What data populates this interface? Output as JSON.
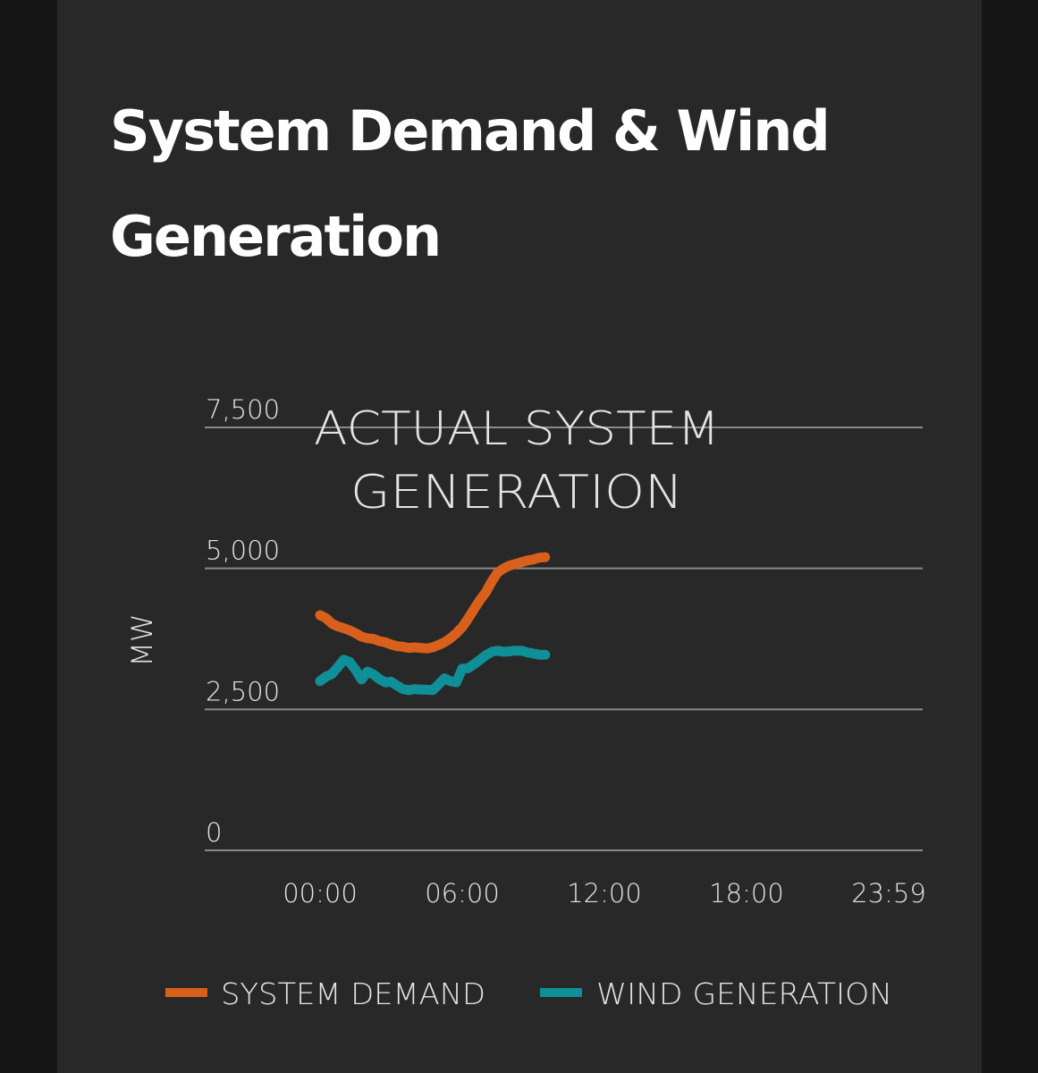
{
  "page": {
    "heading": "System Demand & Wind Generation"
  },
  "colors": {
    "page_background": "#161616",
    "panel_background": "#282828",
    "system_demand": "#d9601c",
    "wind_generation": "#0f8f98",
    "gridline": "#8a8a8a",
    "text": "#e4e4e4"
  },
  "chart_data": {
    "type": "line",
    "title": "ACTUAL SYSTEM GENERATION",
    "title_lines": [
      "ACTUAL SYSTEM",
      "GENERATION"
    ],
    "xlabel": "",
    "ylabel": "MW",
    "ylim": [
      0,
      7500
    ],
    "y_ticks": [
      0,
      2500,
      5000,
      7500
    ],
    "y_tick_labels": [
      "0",
      "2,500",
      "5,000",
      "7,500"
    ],
    "x_range_hours": [
      0,
      24
    ],
    "x_ticks_hours": [
      0,
      6,
      12,
      18,
      24
    ],
    "x_tick_labels": [
      "00:00",
      "06:00",
      "12:00",
      "18:00",
      "23:59"
    ],
    "grid": true,
    "legend_position": "bottom",
    "series": [
      {
        "name": "SYSTEM DEMAND",
        "color": "#d9601c",
        "x": [
          0,
          0.25,
          0.5,
          0.75,
          1,
          1.25,
          1.5,
          1.75,
          2,
          2.25,
          2.5,
          2.75,
          3,
          3.25,
          3.5,
          3.75,
          4,
          4.25,
          4.5,
          4.75,
          5,
          5.25,
          5.5,
          5.75,
          6,
          6.25,
          6.5,
          6.75,
          7,
          7.25,
          7.5,
          7.75,
          8,
          8.25,
          8.5,
          8.75,
          9,
          9.25,
          9.5
        ],
        "values": [
          4170,
          4120,
          4020,
          3970,
          3940,
          3900,
          3850,
          3790,
          3760,
          3750,
          3710,
          3690,
          3650,
          3620,
          3610,
          3590,
          3600,
          3590,
          3580,
          3600,
          3640,
          3690,
          3760,
          3850,
          3960,
          4110,
          4280,
          4440,
          4580,
          4770,
          4930,
          5000,
          5050,
          5080,
          5110,
          5140,
          5160,
          5190,
          5200
        ]
      },
      {
        "name": "WIND GENERATION",
        "color": "#0f8f98",
        "x": [
          0,
          0.25,
          0.5,
          0.75,
          1,
          1.25,
          1.5,
          1.75,
          2,
          2.25,
          2.5,
          2.75,
          3,
          3.25,
          3.5,
          3.75,
          4,
          4.25,
          4.5,
          4.75,
          5,
          5.25,
          5.5,
          5.75,
          6,
          6.25,
          6.5,
          6.75,
          7,
          7.25,
          7.5,
          7.75,
          8,
          8.25,
          8.5,
          8.75,
          9,
          9.25,
          9.5
        ],
        "values": [
          3000,
          3080,
          3130,
          3250,
          3380,
          3340,
          3200,
          3030,
          3170,
          3120,
          3040,
          2980,
          2990,
          2920,
          2860,
          2840,
          2860,
          2850,
          2850,
          2840,
          2940,
          3050,
          3000,
          2980,
          3220,
          3230,
          3300,
          3380,
          3460,
          3520,
          3540,
          3520,
          3530,
          3540,
          3540,
          3510,
          3490,
          3470,
          3470
        ]
      }
    ]
  }
}
